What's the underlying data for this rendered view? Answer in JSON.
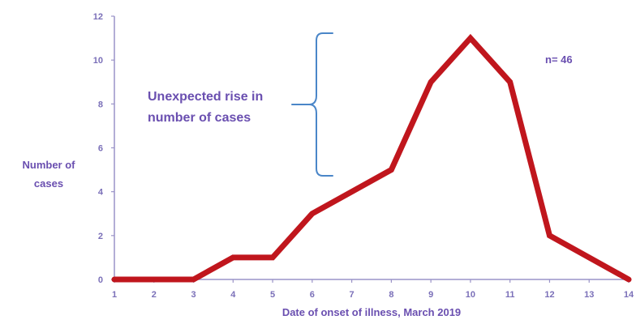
{
  "chart_data": {
    "type": "line",
    "x": [
      1,
      2,
      3,
      4,
      5,
      6,
      7,
      8,
      9,
      10,
      11,
      12,
      13,
      14
    ],
    "series": [
      {
        "values": [
          0,
          0,
          0,
          1,
          1,
          3,
          4,
          5,
          9,
          11,
          9,
          2,
          1,
          0
        ],
        "color": "#c0161d"
      }
    ],
    "xlabel": "Date of onset of illness, March 2019",
    "ylabel_lines": [
      "Number of",
      "cases"
    ],
    "xlim": [
      1,
      14
    ],
    "ylim": [
      0,
      12
    ],
    "x_ticks": [
      "1",
      "2",
      "3",
      "4",
      "5",
      "6",
      "7",
      "8",
      "9",
      "10",
      "11",
      "12",
      "13",
      "14"
    ],
    "y_ticks": [
      "0",
      "2",
      "4",
      "6",
      "8",
      "10",
      "12"
    ],
    "annotation_lines": [
      "Unexpected rise in",
      "number of cases"
    ],
    "n_label": "n= 46",
    "grid": false
  },
  "colors": {
    "axis": "#9a93c8",
    "line": "#c0161d",
    "brace": "#4a86c8",
    "text": "#6a4fb0"
  }
}
